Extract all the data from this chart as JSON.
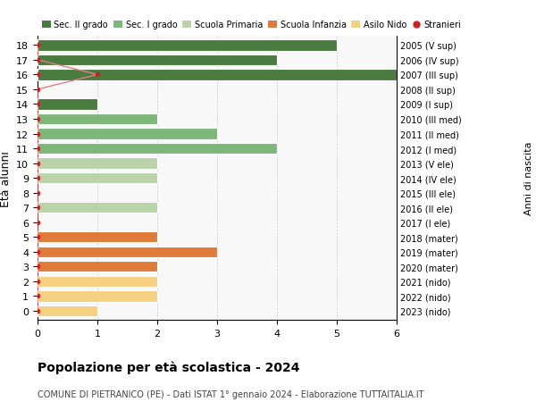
{
  "ages": [
    18,
    17,
    16,
    15,
    14,
    13,
    12,
    11,
    10,
    9,
    8,
    7,
    6,
    5,
    4,
    3,
    2,
    1,
    0
  ],
  "right_labels": [
    "2005 (V sup)",
    "2006 (IV sup)",
    "2007 (III sup)",
    "2008 (II sup)",
    "2009 (I sup)",
    "2010 (III med)",
    "2011 (II med)",
    "2012 (I med)",
    "2013 (V ele)",
    "2014 (IV ele)",
    "2015 (III ele)",
    "2016 (II ele)",
    "2017 (I ele)",
    "2018 (mater)",
    "2019 (mater)",
    "2020 (mater)",
    "2021 (nido)",
    "2022 (nido)",
    "2023 (nido)"
  ],
  "bar_values": [
    5,
    4,
    6,
    0,
    1,
    2,
    3,
    4,
    2,
    2,
    0,
    2,
    0,
    2,
    3,
    2,
    2,
    2,
    1
  ],
  "bar_colors": [
    "#4a7c3f",
    "#4a7c3f",
    "#4a7c3f",
    "#4a7c3f",
    "#4a7c3f",
    "#7db87a",
    "#7db87a",
    "#7db87a",
    "#b8d4a8",
    "#b8d4a8",
    "#b8d4a8",
    "#b8d4a8",
    "#b8d4a8",
    "#e07b39",
    "#e07b39",
    "#e07b39",
    "#f5d080",
    "#f5d080",
    "#f5d080"
  ],
  "stranieri_ages": [
    18,
    17,
    16,
    15,
    14,
    13,
    12,
    11,
    10,
    9,
    8,
    7,
    6,
    5,
    4,
    3,
    2,
    1,
    0
  ],
  "stranieri_x": [
    0,
    0,
    1,
    0,
    0,
    0,
    0,
    0,
    0,
    0,
    0,
    0,
    0,
    0,
    0,
    0,
    0,
    0,
    0
  ],
  "stranieri_color": "#cc2222",
  "stranieri_line_color": "#e08080",
  "title": "Popolazione per età scolastica - 2024",
  "subtitle": "COMUNE DI PIETRANICO (PE) - Dati ISTAT 1° gennaio 2024 - Elaborazione TUTTAITALIA.IT",
  "ylabel_left": "Ètà alunni",
  "ylabel_right": "Anni di nascita",
  "xlim": [
    0,
    6
  ],
  "xticks": [
    0,
    1,
    2,
    3,
    4,
    5,
    6
  ],
  "ylim": [
    -0.6,
    18.6
  ],
  "legend_labels": [
    "Sec. II grado",
    "Sec. I grado",
    "Scuola Primaria",
    "Scuola Infanzia",
    "Asilo Nido",
    "Stranieri"
  ],
  "legend_colors": [
    "#4a7c3f",
    "#7db87a",
    "#b8d4a8",
    "#e07b39",
    "#f5d080",
    "#cc2222"
  ],
  "bar_height": 0.75,
  "grid_color": "#cccccc",
  "bg_color": "#ffffff",
  "plot_bg_color": "#f8f8f8"
}
